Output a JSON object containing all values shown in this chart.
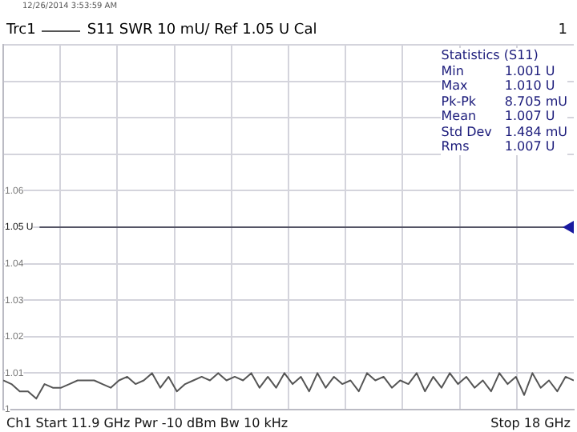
{
  "chart_data": {
    "type": "line",
    "subtitle": "S11 SWR 10 mU/ Ref 1.05 U Cal",
    "categories": [
      null,
      null,
      null,
      null,
      null,
      null,
      null,
      null,
      null,
      null,
      null,
      null,
      null,
      null,
      null,
      null,
      null,
      null,
      null,
      null,
      null,
      null,
      null,
      null,
      null,
      null,
      null,
      null,
      null,
      null,
      null,
      null,
      null,
      null,
      null,
      null,
      null,
      null,
      null,
      null,
      null,
      null,
      null,
      null,
      null,
      null,
      null,
      null,
      null,
      null,
      null,
      null,
      null,
      null,
      null,
      null,
      null,
      null,
      null,
      null,
      null,
      null,
      null,
      null,
      null,
      null,
      null,
      null,
      null,
      null
    ],
    "series": [
      {
        "name": "Trc1",
        "color": "#555555",
        "values": [
          1.008,
          1.007,
          1.005,
          1.005,
          1.003,
          1.007,
          1.006,
          1.006,
          1.007,
          1.008,
          1.008,
          1.008,
          1.007,
          1.006,
          1.008,
          1.009,
          1.007,
          1.008,
          1.01,
          1.006,
          1.009,
          1.005,
          1.007,
          1.008,
          1.009,
          1.008,
          1.01,
          1.008,
          1.009,
          1.008,
          1.01,
          1.006,
          1.009,
          1.006,
          1.01,
          1.007,
          1.009,
          1.005,
          1.01,
          1.006,
          1.009,
          1.007,
          1.008,
          1.005,
          1.01,
          1.008,
          1.009,
          1.006,
          1.008,
          1.007,
          1.01,
          1.005,
          1.009,
          1.006,
          1.01,
          1.007,
          1.009,
          1.006,
          1.008,
          1.005,
          1.01,
          1.007,
          1.009,
          1.004,
          1.01,
          1.006,
          1.008,
          1.005,
          1.009,
          1.008
        ]
      }
    ],
    "ylim": [
      1.0,
      1.1
    ],
    "yticks": [
      {
        "value": 1.0,
        "label": "1"
      },
      1.01,
      1.02,
      1.03,
      1.04,
      {
        "value": 1.05,
        "label": "1.05 U"
      },
      1.06,
      {
        "value": 1.07,
        "label": null
      },
      {
        "value": 1.08,
        "label": null
      },
      {
        "value": 1.09,
        "label": null
      },
      {
        "value": 1.1,
        "label": null
      }
    ],
    "tick_labels": "y",
    "grid": true,
    "legend": "top left",
    "marker": "none",
    "line_style": "solid",
    "ref_lines": [
      {
        "axis": "y",
        "value": 1.05,
        "color": "#555566"
      }
    ],
    "annotations": [
      "12/26/2014 3:53:59 AM",
      "1",
      "Statistics (S11)",
      "Min",
      "1.001 U",
      "Max",
      "1.010 U",
      "Pk-Pk",
      "8.705 mU",
      "Mean",
      "1.007 U",
      "Std Dev",
      "1.484 mU",
      "Rms",
      "1.007 U",
      "Ch1 Start 11.9 GHz Pwr -10 dBm Bw 10 kHz",
      "Stop 18 GHz"
    ]
  }
}
